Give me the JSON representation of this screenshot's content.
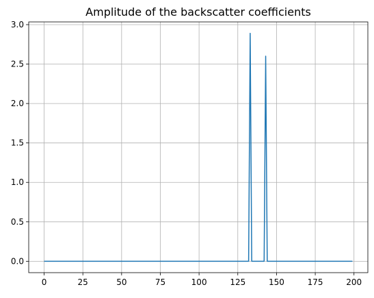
{
  "chart_data": {
    "type": "line",
    "title": "Amplitude of the backscatter coefficients",
    "xlabel": "",
    "ylabel": "",
    "xlim": [
      -9.95,
      208.95
    ],
    "ylim": [
      -0.1445,
      3.0345
    ],
    "xticks": [
      0,
      25,
      50,
      75,
      100,
      125,
      150,
      175,
      200
    ],
    "xtick_labels": [
      "0",
      "25",
      "50",
      "75",
      "100",
      "125",
      "150",
      "175",
      "200"
    ],
    "yticks": [
      0.0,
      0.5,
      1.0,
      1.5,
      2.0,
      2.5,
      3.0
    ],
    "ytick_labels": [
      "0.0",
      "0.5",
      "1.0",
      "1.5",
      "2.0",
      "2.5",
      "3.0"
    ],
    "grid": true,
    "legend": "none",
    "series": [
      {
        "color": "#1f77b4",
        "x": [
          0,
          132,
          133,
          134,
          142,
          143,
          144,
          199
        ],
        "y": [
          0,
          0,
          2.89,
          0,
          0,
          2.6,
          0,
          0
        ]
      }
    ]
  }
}
